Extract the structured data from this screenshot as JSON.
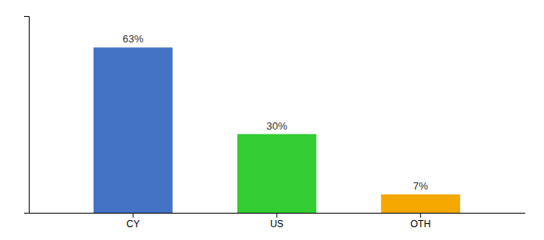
{
  "chart_data": {
    "type": "bar",
    "categories": [
      "CY",
      "US",
      "OTH"
    ],
    "values": [
      63,
      30,
      7
    ],
    "value_labels": [
      "63%",
      "30%",
      "7%"
    ],
    "colors": [
      "#4472c4",
      "#33cc33",
      "#f5a800"
    ],
    "ylim": [
      0,
      75
    ],
    "data_labels": true,
    "tick_labels": "x",
    "grid": false
  }
}
